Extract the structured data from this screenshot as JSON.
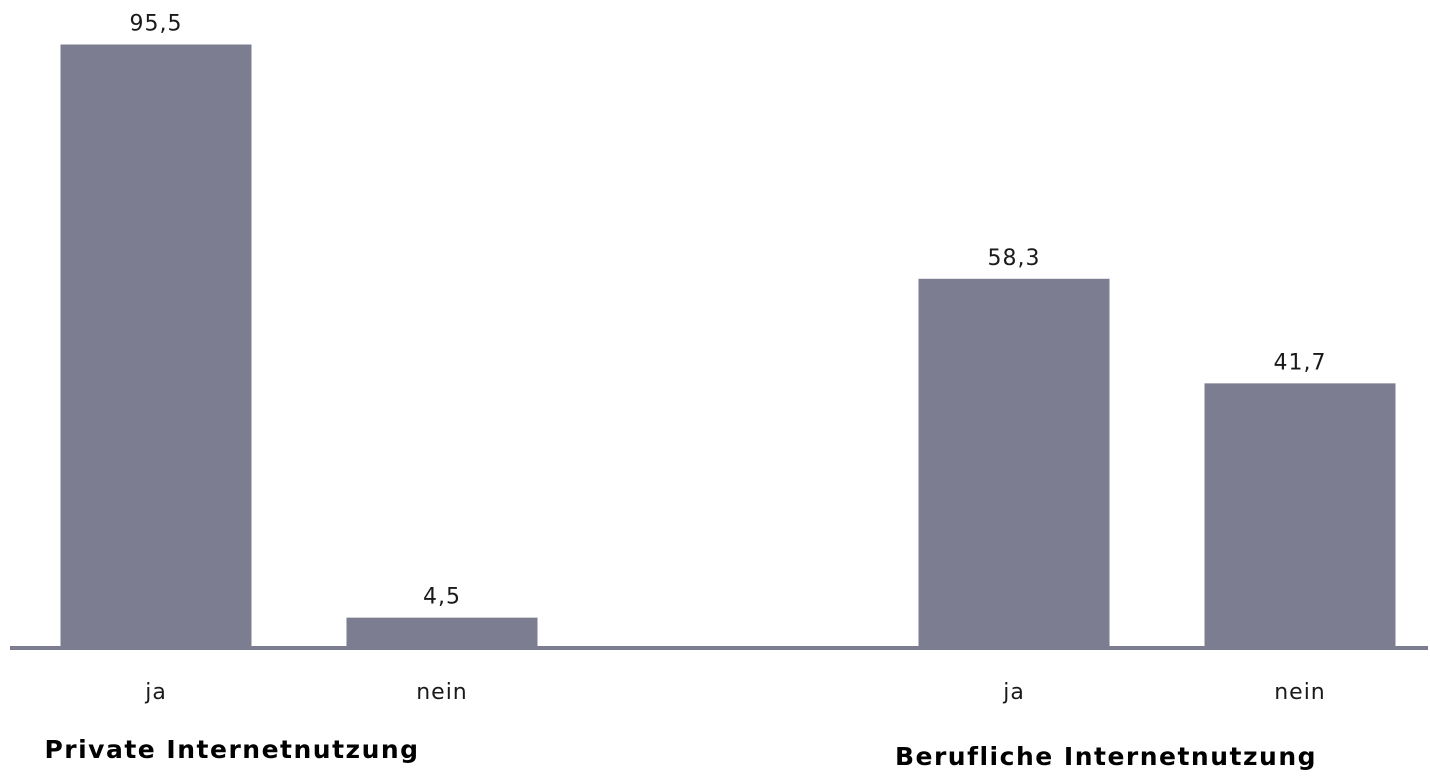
{
  "chart_data": {
    "type": "bar",
    "groups": [
      {
        "name": "Private Internetnutzung",
        "categories": [
          "ja",
          "nein"
        ],
        "values": [
          95.5,
          4.5
        ],
        "value_labels": [
          "95,5",
          "4,5"
        ]
      },
      {
        "name": "Berufliche Internetnutzung",
        "categories": [
          "ja",
          "nein"
        ],
        "values": [
          58.3,
          41.7
        ],
        "value_labels": [
          "58,3",
          "41,7"
        ]
      }
    ],
    "ylim": [
      0,
      100
    ],
    "grid": false,
    "bar_color": "#7c7d91",
    "axis_color": "#7c7d91"
  }
}
